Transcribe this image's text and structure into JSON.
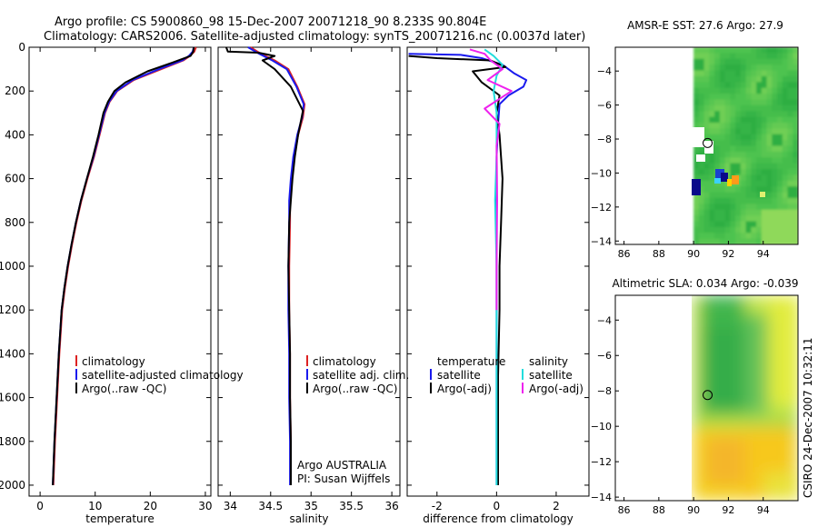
{
  "header": {
    "line1": "Argo profile: CS 5900860_98 15-Dec-2007 20071218_90 8.233S 90.804E",
    "line2": "Climatology: CARS2006. Satellite-adjusted climatology: synTS_20071216.nc (0.0037d later)"
  },
  "footer": {
    "credit": "Argo AUSTRALIA",
    "pi": "PI: Susan Wijffels",
    "stamp": "CSIRO 24-Dec-2007 10:32:11"
  },
  "colors": {
    "climatology": "#dd2222",
    "satellite": "#1a1aee",
    "argo": "#000000",
    "sal_satellite": "#22dddd",
    "sal_argo": "#ee22ee"
  },
  "chart_data": [
    {
      "id": "temperature",
      "type": "line",
      "xlabel": "temperature",
      "ylabel": "",
      "xlim": [
        -2,
        31
      ],
      "ylim": [
        2050,
        0
      ],
      "xticks": [
        0,
        10,
        20,
        30
      ],
      "yticks": [
        0,
        200,
        400,
        600,
        800,
        1000,
        1200,
        1400,
        1600,
        1800,
        2000
      ],
      "legend": [
        "climatology",
        "satellite-adjusted climatology",
        "Argo(..raw -QC)"
      ],
      "series": [
        {
          "name": "climatology",
          "color": "#dd2222",
          "x": [
            28.3,
            28.0,
            27.2,
            26.0,
            22.0,
            17.0,
            14.0,
            12.6,
            11.8,
            10.8,
            9.8,
            8.6,
            7.5,
            6.6,
            5.8,
            5.1,
            4.5,
            4.0,
            3.5,
            3.1,
            2.7,
            2.4
          ],
          "y": [
            0,
            20,
            40,
            60,
            100,
            150,
            200,
            250,
            300,
            400,
            500,
            600,
            700,
            800,
            900,
            1000,
            1100,
            1200,
            1400,
            1600,
            1800,
            2000
          ]
        },
        {
          "name": "satellite-adjusted climatology",
          "color": "#1a1aee",
          "x": [
            27.9,
            27.7,
            27.0,
            25.8,
            21.6,
            16.8,
            13.9,
            12.5,
            11.7,
            10.7,
            9.7,
            8.5,
            7.4,
            6.5,
            5.7,
            5.0,
            4.4,
            3.9,
            3.4,
            3.0,
            2.6,
            2.3
          ],
          "y": [
            0,
            20,
            40,
            60,
            100,
            150,
            200,
            250,
            300,
            400,
            500,
            600,
            700,
            800,
            900,
            1000,
            1100,
            1200,
            1400,
            1600,
            1800,
            2000
          ]
        },
        {
          "name": "Argo(..raw -QC)",
          "color": "#000000",
          "x": [
            27.9,
            27.8,
            27.3,
            24.0,
            19.5,
            15.5,
            13.5,
            12.3,
            11.5,
            10.6,
            9.6,
            8.5,
            7.4,
            6.5,
            5.7,
            5.0,
            4.4,
            3.9,
            3.4,
            3.0,
            2.6,
            2.3
          ],
          "y": [
            0,
            20,
            40,
            70,
            110,
            160,
            200,
            250,
            300,
            400,
            500,
            600,
            700,
            800,
            900,
            1000,
            1100,
            1200,
            1400,
            1600,
            1800,
            2000
          ]
        }
      ]
    },
    {
      "id": "salinity",
      "type": "line",
      "xlabel": "salinity",
      "ylabel": "",
      "xlim": [
        33.85,
        36.1
      ],
      "ylim": [
        2050,
        0
      ],
      "xticks": [
        34,
        34.5,
        35,
        35.5,
        36
      ],
      "legend": [
        "climatology",
        "satellite adj. clim.",
        "Argo(..raw -QC)"
      ],
      "series": [
        {
          "name": "climatology",
          "color": "#dd2222",
          "x": [
            34.25,
            34.38,
            34.55,
            34.72,
            34.83,
            34.92,
            34.9,
            34.84,
            34.79,
            34.76,
            34.74,
            34.74,
            34.73,
            34.73,
            34.74,
            34.74,
            34.75,
            34.75
          ],
          "y": [
            0,
            30,
            60,
            100,
            180,
            260,
            320,
            400,
            500,
            600,
            700,
            800,
            1000,
            1200,
            1400,
            1600,
            1800,
            2000
          ]
        },
        {
          "name": "satellite adj. clim.",
          "color": "#1a1aee",
          "x": [
            34.22,
            34.36,
            34.52,
            34.7,
            34.82,
            34.91,
            34.89,
            34.83,
            34.78,
            34.75,
            34.73,
            34.73,
            34.72,
            34.72,
            34.73,
            34.73,
            34.74,
            34.74
          ],
          "y": [
            0,
            30,
            60,
            100,
            180,
            260,
            320,
            400,
            500,
            600,
            700,
            800,
            1000,
            1200,
            1400,
            1600,
            1800,
            2000
          ]
        },
        {
          "name": "Argo(..raw -QC)",
          "color": "#000000",
          "x": [
            33.95,
            33.97,
            34.35,
            34.55,
            34.4,
            34.55,
            34.75,
            34.9,
            34.84,
            34.8,
            34.77,
            34.75,
            34.73,
            34.72,
            34.73,
            34.74,
            34.74,
            34.75,
            34.75
          ],
          "y": [
            0,
            20,
            25,
            40,
            60,
            100,
            180,
            290,
            400,
            500,
            600,
            700,
            800,
            1000,
            1200,
            1400,
            1600,
            1800,
            2000
          ]
        }
      ]
    },
    {
      "id": "difference",
      "type": "line",
      "xlabel": "difference from climatology",
      "ylabel": "",
      "xlim": [
        -3,
        3.1
      ],
      "ylim": [
        2050,
        0
      ],
      "xticks": [
        -2,
        0,
        2
      ],
      "legend_temperature": {
        "title": "temperature",
        "items": [
          "satellite",
          "Argo(-adj)"
        ]
      },
      "legend_salinity": {
        "title": "salinity",
        "items": [
          "satellite",
          "Argo(-adj)"
        ]
      },
      "series": [
        {
          "name": "temperature satellite",
          "color": "#1a1aee",
          "x": [
            -2.95,
            -1.2,
            -0.5,
            0.2,
            0.6,
            1.0,
            0.9,
            0.4,
            0.1,
            0.05,
            0.0,
            0.0,
            0.0,
            0.0,
            0.0,
            0.0
          ],
          "y": [
            30,
            35,
            50,
            80,
            120,
            150,
            180,
            220,
            260,
            350,
            500,
            800,
            1100,
            1400,
            1700,
            2000
          ]
        },
        {
          "name": "temperature Argo(-adj)",
          "color": "#000000",
          "x": [
            -2.95,
            -2.0,
            -0.2,
            0.3,
            -0.8,
            -0.5,
            0.1,
            0.0,
            0.1,
            0.2,
            0.15,
            0.1,
            0.1,
            0.05,
            0.05,
            0.05
          ],
          "y": [
            40,
            50,
            60,
            90,
            110,
            160,
            220,
            300,
            400,
            600,
            800,
            1000,
            1200,
            1500,
            1800,
            2000
          ]
        },
        {
          "name": "salinity satellite",
          "color": "#22dddd",
          "x": [
            -0.4,
            -0.1,
            0.2,
            0.0,
            -0.1,
            0.0,
            0.0,
            -0.05,
            0.0,
            0.0,
            0.0,
            0.0
          ],
          "y": [
            10,
            40,
            80,
            130,
            200,
            300,
            500,
            700,
            1000,
            1400,
            1700,
            2000
          ]
        },
        {
          "name": "salinity Argo(-adj)",
          "color": "#ee22ee",
          "x": [
            -0.9,
            -0.4,
            -0.2,
            0.2,
            -0.3,
            0.5,
            -0.4,
            0.1,
            0.0,
            0.02,
            0.0,
            0.0
          ],
          "y": [
            10,
            30,
            60,
            100,
            150,
            200,
            280,
            350,
            450,
            700,
            1000,
            1200
          ]
        }
      ]
    },
    {
      "id": "sst_map",
      "type": "heatmap",
      "title": "AMSR-E SST: 27.6 Argo: 27.9",
      "xlim": [
        85.5,
        96
      ],
      "ylim": [
        -14.2,
        -2.6
      ],
      "xticks": [
        86,
        88,
        90,
        92,
        94
      ],
      "yticks": [
        -4,
        -6,
        -8,
        -10,
        -12,
        -14
      ],
      "data_x_range": [
        90,
        96
      ],
      "argo_position": [
        90.804,
        -8.233
      ]
    },
    {
      "id": "sla_map",
      "type": "heatmap",
      "title": "Altimetric SLA: 0.034 Argo: -0.039",
      "xlim": [
        85.5,
        96
      ],
      "ylim": [
        -14.2,
        -2.6
      ],
      "xticks": [
        86,
        88,
        90,
        92,
        94
      ],
      "yticks": [
        -4,
        -6,
        -8,
        -10,
        -12,
        -14
      ],
      "data_x_range": [
        90,
        96
      ],
      "argo_position": [
        90.804,
        -8.233
      ]
    }
  ]
}
